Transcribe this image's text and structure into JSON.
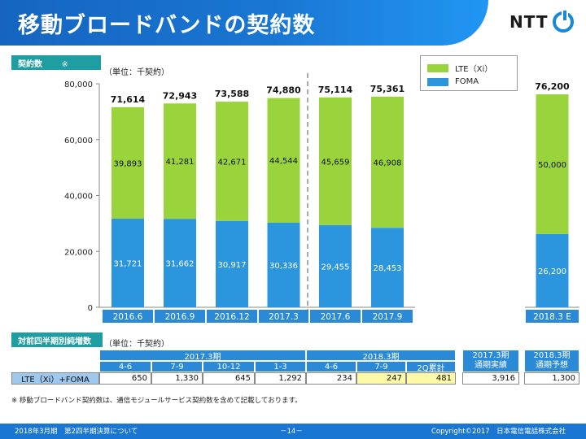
{
  "page": {
    "title": "移動ブロードバンドの契約数",
    "logo_text": "NTT",
    "footnote": "※ 移動ブロードバンド契約数は、通信モジュールサービス契約数を含めて記載しております。",
    "footer_left": "2018年3月期　第2四半期決算について",
    "footer_center": "－14－",
    "footer_right": "Copyright©2017　日本電信電話株式会社"
  },
  "chart_section": {
    "tab_label": "契約数",
    "tab_mark": "※",
    "unit": "（単位：千契約）"
  },
  "legend": {
    "items": [
      {
        "label": "LTE（Xi）",
        "color": "#9ad43c"
      },
      {
        "label": "FOMA",
        "color": "#2b95dd"
      }
    ]
  },
  "chart_data": {
    "type": "bar",
    "stacked": true,
    "categories": [
      "2016.6",
      "2016.9",
      "2016.12",
      "2017.3",
      "2017.6",
      "2017.9",
      "2018.3 E"
    ],
    "series": [
      {
        "name": "FOMA",
        "color": "#2b95dd",
        "values": [
          31721,
          31662,
          30917,
          30336,
          29455,
          28453,
          26200
        ]
      },
      {
        "name": "LTE（Xi）",
        "color": "#9ad43c",
        "values": [
          39893,
          41281,
          42671,
          44544,
          45659,
          46908,
          50000
        ]
      }
    ],
    "totals": [
      71614,
      72943,
      73588,
      74880,
      75114,
      75361,
      76200
    ],
    "value_labels": {
      "foma": [
        "31,721",
        "31,662",
        "30,917",
        "30,336",
        "29,455",
        "28,453",
        "26,200"
      ],
      "lte": [
        "39,893",
        "41,281",
        "42,671",
        "44,544",
        "45,659",
        "46,908",
        "50,000"
      ],
      "totals": [
        "71,614",
        "72,943",
        "73,588",
        "74,880",
        "75,114",
        "75,361",
        "76,200"
      ]
    },
    "yticks": [
      "0",
      "20,000",
      "40,000",
      "60,000",
      "80,000"
    ],
    "ylim": [
      0,
      80000
    ],
    "legend_position": "top-right",
    "grid": false
  },
  "table_section": {
    "tab_label": "対前四半期別純増数",
    "unit": "（単位：千契約）",
    "groups": [
      "2017.3期",
      "2018.3期",
      "2017.3期\n通期実績",
      "2018.3期\n通期予想"
    ],
    "group_lines": [
      [
        "2017.3期"
      ],
      [
        "2018.3期"
      ],
      [
        "2017.3期",
        "通期実績"
      ],
      [
        "2018.3期",
        "通期予想"
      ]
    ],
    "columns": [
      "4-6",
      "7-9",
      "10-12",
      "1-3",
      "4-6",
      "7-9",
      "2Q累計"
    ],
    "row_label": "LTE（Xi）+FOMA",
    "values": [
      "650",
      "1,330",
      "645",
      "1,292",
      "234",
      "247",
      "481",
      "3,916",
      "1,300"
    ]
  }
}
